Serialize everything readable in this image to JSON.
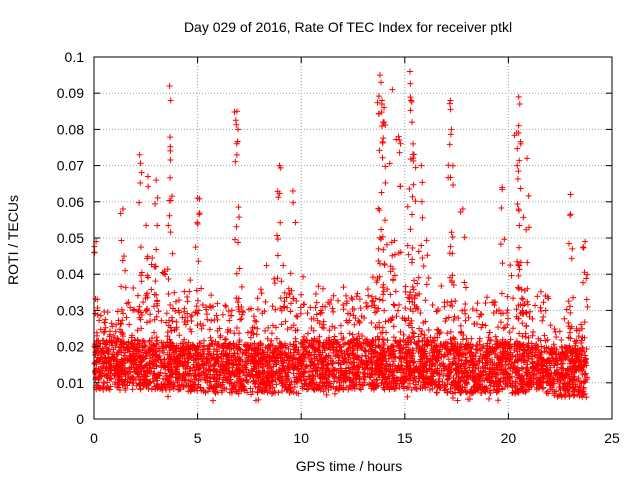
{
  "chart_data": {
    "type": "scatter",
    "title": "Day 029 of 2016, Rate Of TEC Index for receiver ptkl",
    "xlabel": "GPS time / hours",
    "ylabel": "ROTI / TECUs",
    "xlim": [
      0,
      25
    ],
    "ylim": [
      0,
      0.1
    ],
    "x_ticks": [
      0,
      5,
      10,
      15,
      20,
      25
    ],
    "x_tick_labels": [
      "0",
      "5",
      "10",
      "15",
      "20",
      "25"
    ],
    "y_ticks": [
      0,
      0.01,
      0.02,
      0.03,
      0.04,
      0.05,
      0.06,
      0.07,
      0.08,
      0.09,
      0.1
    ],
    "y_tick_labels": [
      "0",
      "0.01",
      "0.02",
      "0.03",
      "0.04",
      "0.05",
      "0.06",
      "0.07",
      "0.08",
      "0.09",
      "0.1"
    ],
    "grid": true,
    "marker": "plus",
    "color": "#ff0000",
    "series": [
      {
        "name": "ROTI",
        "notable_points": [
          {
            "x": 3.65,
            "y": 0.092
          },
          {
            "x": 3.7,
            "y": 0.088
          },
          {
            "x": 6.9,
            "y": 0.085
          },
          {
            "x": 6.95,
            "y": 0.08
          },
          {
            "x": 2.2,
            "y": 0.073
          },
          {
            "x": 2.6,
            "y": 0.067
          },
          {
            "x": 3.0,
            "y": 0.066
          },
          {
            "x": 8.95,
            "y": 0.07
          },
          {
            "x": 9.6,
            "y": 0.063
          },
          {
            "x": 13.8,
            "y": 0.095
          },
          {
            "x": 13.85,
            "y": 0.093
          },
          {
            "x": 13.9,
            "y": 0.088
          },
          {
            "x": 14.0,
            "y": 0.086
          },
          {
            "x": 13.95,
            "y": 0.082
          },
          {
            "x": 14.4,
            "y": 0.091
          },
          {
            "x": 14.7,
            "y": 0.078
          },
          {
            "x": 15.25,
            "y": 0.096
          },
          {
            "x": 15.3,
            "y": 0.088
          },
          {
            "x": 15.35,
            "y": 0.082
          },
          {
            "x": 15.4,
            "y": 0.076
          },
          {
            "x": 15.8,
            "y": 0.07
          },
          {
            "x": 17.2,
            "y": 0.088
          },
          {
            "x": 17.25,
            "y": 0.08
          },
          {
            "x": 20.5,
            "y": 0.089
          },
          {
            "x": 20.55,
            "y": 0.087
          },
          {
            "x": 20.4,
            "y": 0.079
          },
          {
            "x": 20.6,
            "y": 0.076
          },
          {
            "x": 20.9,
            "y": 0.072
          },
          {
            "x": 19.7,
            "y": 0.064
          },
          {
            "x": 17.8,
            "y": 0.058
          },
          {
            "x": 23.0,
            "y": 0.062
          },
          {
            "x": 23.7,
            "y": 0.049
          },
          {
            "x": 1.4,
            "y": 0.058
          },
          {
            "x": 5.0,
            "y": 0.061
          },
          {
            "x": 0.1,
            "y": 0.049
          }
        ],
        "bands": [
          {
            "x_start": 0.0,
            "x_end": 1.5,
            "low": 0.006,
            "high": 0.035
          },
          {
            "x_start": 1.5,
            "x_end": 3.0,
            "low": 0.006,
            "high": 0.045
          },
          {
            "x_start": 3.0,
            "x_end": 4.5,
            "low": 0.006,
            "high": 0.042
          },
          {
            "x_start": 4.5,
            "x_end": 6.0,
            "low": 0.005,
            "high": 0.04
          },
          {
            "x_start": 6.0,
            "x_end": 8.0,
            "low": 0.005,
            "high": 0.038
          },
          {
            "x_start": 8.0,
            "x_end": 10.0,
            "low": 0.005,
            "high": 0.045
          },
          {
            "x_start": 10.0,
            "x_end": 12.0,
            "low": 0.006,
            "high": 0.04
          },
          {
            "x_start": 12.0,
            "x_end": 13.5,
            "low": 0.006,
            "high": 0.042
          },
          {
            "x_start": 13.5,
            "x_end": 16.5,
            "low": 0.006,
            "high": 0.05
          },
          {
            "x_start": 16.5,
            "x_end": 19.5,
            "low": 0.005,
            "high": 0.04
          },
          {
            "x_start": 19.5,
            "x_end": 22.0,
            "low": 0.005,
            "high": 0.045
          },
          {
            "x_start": 22.0,
            "x_end": 23.8,
            "low": 0.004,
            "high": 0.033
          }
        ]
      }
    ]
  }
}
